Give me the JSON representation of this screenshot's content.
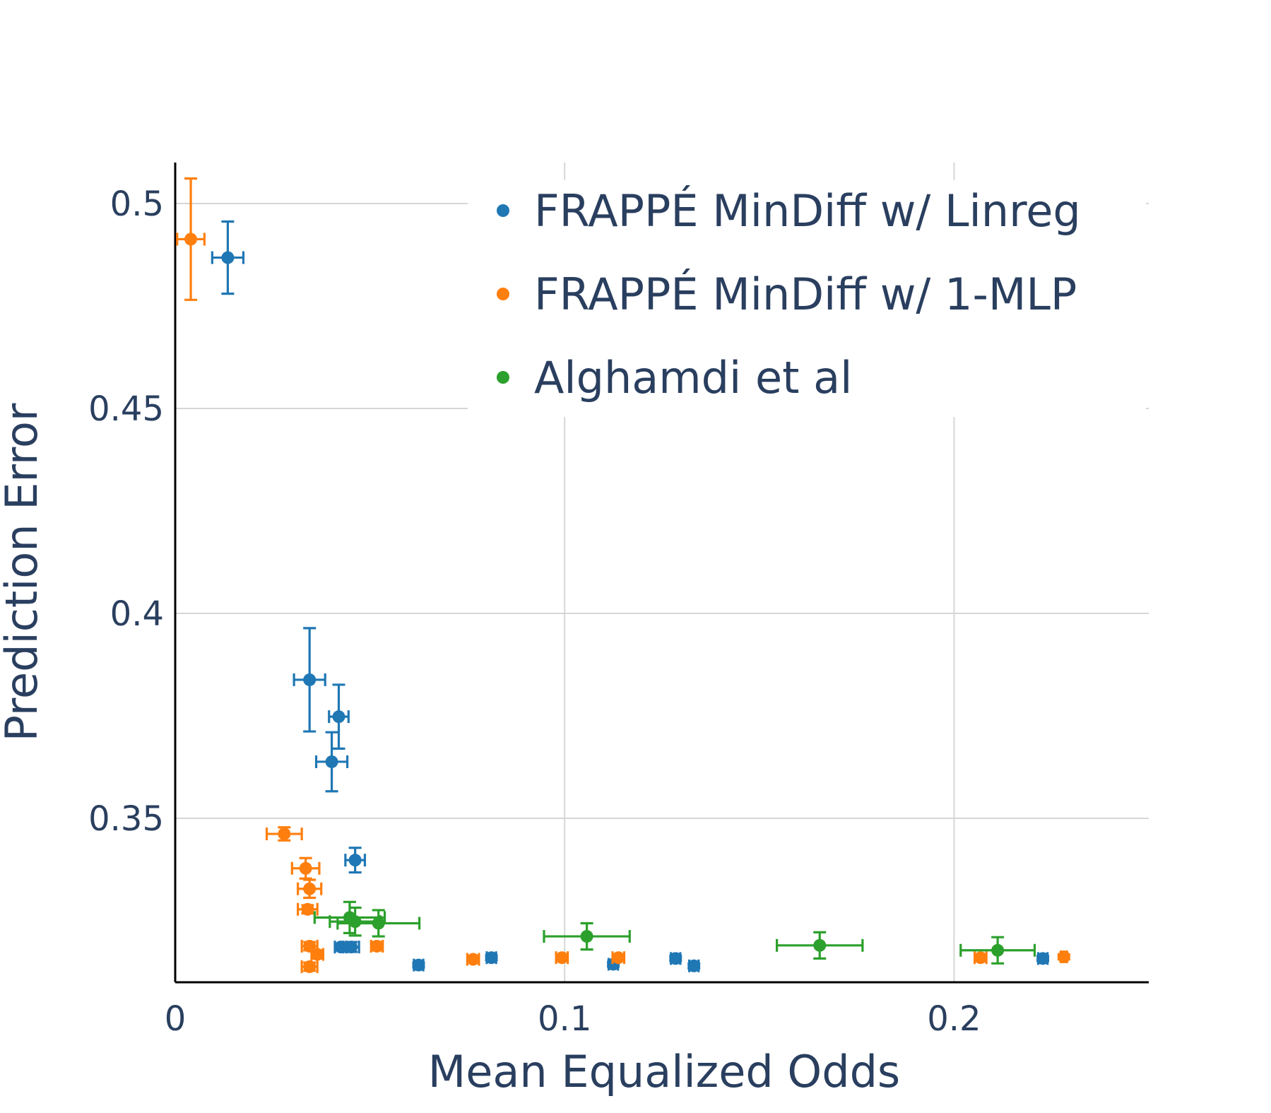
{
  "chart_data": {
    "type": "scatter",
    "title": "",
    "xlabel": "Mean Equalized Odds",
    "ylabel": "Prediction Error",
    "xlim": [
      0,
      0.25
    ],
    "ylim": [
      0.31,
      0.51
    ],
    "xticks": [
      0,
      0.1,
      0.2
    ],
    "xtick_labels": [
      "0",
      "0.1",
      "0.2"
    ],
    "yticks": [
      0.35,
      0.4,
      0.45,
      0.5
    ],
    "ytick_labels": [
      "0.35",
      "0.4",
      "0.45",
      "0.5"
    ],
    "grid": true,
    "legend_position": "top-right",
    "series": [
      {
        "name": "FRAPPÉ MinDiff w/ Linreg",
        "color": "#1f77b4",
        "points": [
          {
            "x": 0.0135,
            "y": 0.4868,
            "xerr": 0.004,
            "yerr": 0.0088
          },
          {
            "x": 0.0345,
            "y": 0.3838,
            "xerr": 0.004,
            "yerr": 0.0126
          },
          {
            "x": 0.042,
            "y": 0.3748,
            "xerr": 0.0025,
            "yerr": 0.0078
          },
          {
            "x": 0.0402,
            "y": 0.3638,
            "xerr": 0.004,
            "yerr": 0.0072
          },
          {
            "x": 0.0462,
            "y": 0.3398,
            "xerr": 0.0025,
            "yerr": 0.003
          },
          {
            "x": 0.0425,
            "y": 0.3186,
            "xerr": 0.0015,
            "yerr": 0.0008
          },
          {
            "x": 0.0452,
            "y": 0.3186,
            "xerr": 0.002,
            "yerr": 0.0012
          },
          {
            "x": 0.0625,
            "y": 0.3142,
            "xerr": 0.0012,
            "yerr": 0.0006
          },
          {
            "x": 0.0812,
            "y": 0.316,
            "xerr": 0.0012,
            "yerr": 0.0006
          },
          {
            "x": 0.1125,
            "y": 0.3144,
            "xerr": 0.0012,
            "yerr": 0.0006
          },
          {
            "x": 0.1285,
            "y": 0.3158,
            "xerr": 0.0012,
            "yerr": 0.0006
          },
          {
            "x": 0.1332,
            "y": 0.314,
            "xerr": 0.0012,
            "yerr": 0.0006
          },
          {
            "x": 0.2228,
            "y": 0.3158,
            "xerr": 0.0012,
            "yerr": 0.0006
          }
        ]
      },
      {
        "name": "FRAPPÉ MinDiff w/ 1-MLP",
        "color": "#ff7f0e",
        "points": [
          {
            "x": 0.004,
            "y": 0.4913,
            "xerr": 0.0035,
            "yerr": 0.0148
          },
          {
            "x": 0.028,
            "y": 0.3462,
            "xerr": 0.0045,
            "yerr": 0.0016
          },
          {
            "x": 0.0335,
            "y": 0.3378,
            "xerr": 0.0035,
            "yerr": 0.0025
          },
          {
            "x": 0.0345,
            "y": 0.3328,
            "xerr": 0.003,
            "yerr": 0.0022
          },
          {
            "x": 0.034,
            "y": 0.3278,
            "xerr": 0.0025,
            "yerr": 0.001
          },
          {
            "x": 0.0345,
            "y": 0.3188,
            "xerr": 0.002,
            "yerr": 0.001
          },
          {
            "x": 0.0365,
            "y": 0.3168,
            "xerr": 0.0015,
            "yerr": 0.001
          },
          {
            "x": 0.0345,
            "y": 0.3138,
            "xerr": 0.002,
            "yerr": 0.001
          },
          {
            "x": 0.0518,
            "y": 0.3188,
            "xerr": 0.0015,
            "yerr": 0.001
          },
          {
            "x": 0.0765,
            "y": 0.3156,
            "xerr": 0.0015,
            "yerr": 0.0006
          },
          {
            "x": 0.0993,
            "y": 0.316,
            "xerr": 0.0015,
            "yerr": 0.0006
          },
          {
            "x": 0.1138,
            "y": 0.316,
            "xerr": 0.0015,
            "yerr": 0.0006
          },
          {
            "x": 0.2068,
            "y": 0.316,
            "xerr": 0.0015,
            "yerr": 0.0006
          },
          {
            "x": 0.2282,
            "y": 0.3162,
            "xerr": 0.0008,
            "yerr": 0.0006
          }
        ]
      },
      {
        "name": "Alghamdi et al",
        "color": "#2ca02c",
        "points": [
          {
            "x": 0.0448,
            "y": 0.3258,
            "xerr": 0.009,
            "yerr": 0.0038
          },
          {
            "x": 0.0462,
            "y": 0.3248,
            "xerr": 0.0065,
            "yerr": 0.0034
          },
          {
            "x": 0.0522,
            "y": 0.3244,
            "xerr": 0.0105,
            "yerr": 0.0032
          },
          {
            "x": 0.1057,
            "y": 0.3212,
            "xerr": 0.011,
            "yerr": 0.0032
          },
          {
            "x": 0.1655,
            "y": 0.319,
            "xerr": 0.011,
            "yerr": 0.0032
          },
          {
            "x": 0.2112,
            "y": 0.3178,
            "xerr": 0.0095,
            "yerr": 0.0032
          }
        ]
      }
    ]
  }
}
